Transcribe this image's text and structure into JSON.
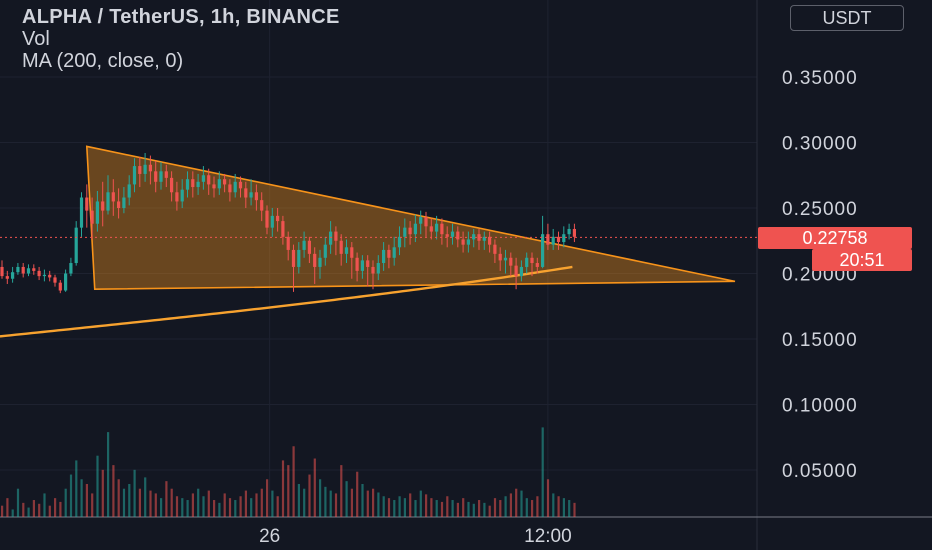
{
  "header": {
    "title": "ALPHA / TetherUS, 1h, BINANCE",
    "vol_label": "Vol",
    "ma_label": "MA (200, close, 0)"
  },
  "currency_button": "USDT",
  "last_price_label": "0.22758",
  "countdown_label": "20:51",
  "colors": {
    "background": "#131722",
    "up": "#26a69a",
    "down": "#ef5350",
    "ma": "#f7a22f",
    "drawing": "#f7931a",
    "text": "#d1d4dc"
  },
  "chart_data": {
    "type": "candlestick",
    "title": "ALPHA / TetherUS, 1h, BINANCE",
    "y_axis": {
      "ticks": [
        "0.35000",
        "0.30000",
        "0.25000",
        "0.20000",
        "0.15000",
        "0.10000",
        "0.05000"
      ],
      "tick_values": [
        0.35,
        0.3,
        0.25,
        0.2,
        0.15,
        0.1,
        0.05
      ],
      "range": [
        0.0,
        0.38
      ]
    },
    "x_axis": {
      "tick_labels": [
        "26",
        "12:00"
      ]
    },
    "last_price": 0.22758,
    "grid": true,
    "drawings": [
      {
        "type": "triangle",
        "name": "symmetrical-triangle",
        "points": [
          [
            0,
            0.297
          ],
          [
            2,
            0.188
          ],
          [
            188,
            0.194
          ]
        ]
      }
    ],
    "ohlc": [
      [
        0.205,
        0.198,
        0.21,
        0.196
      ],
      [
        0.198,
        0.196,
        0.202,
        0.192
      ],
      [
        0.196,
        0.201,
        0.205,
        0.193
      ],
      [
        0.201,
        0.205,
        0.208,
        0.199
      ],
      [
        0.205,
        0.2,
        0.208,
        0.197
      ],
      [
        0.2,
        0.204,
        0.207,
        0.198
      ],
      [
        0.204,
        0.202,
        0.207,
        0.199
      ],
      [
        0.202,
        0.198,
        0.205,
        0.195
      ],
      [
        0.198,
        0.199,
        0.203,
        0.194
      ],
      [
        0.199,
        0.197,
        0.202,
        0.194
      ],
      [
        0.197,
        0.193,
        0.199,
        0.19
      ],
      [
        0.193,
        0.187,
        0.195,
        0.185
      ],
      [
        0.187,
        0.2,
        0.203,
        0.186
      ],
      [
        0.2,
        0.208,
        0.212,
        0.198
      ],
      [
        0.208,
        0.235,
        0.24,
        0.206
      ],
      [
        0.235,
        0.258,
        0.262,
        0.228
      ],
      [
        0.258,
        0.248,
        0.268,
        0.235
      ],
      [
        0.248,
        0.238,
        0.258,
        0.226
      ],
      [
        0.238,
        0.255,
        0.263,
        0.232
      ],
      [
        0.255,
        0.248,
        0.27,
        0.236
      ],
      [
        0.248,
        0.262,
        0.275,
        0.245
      ],
      [
        0.262,
        0.255,
        0.272,
        0.244
      ],
      [
        0.255,
        0.25,
        0.265,
        0.242
      ],
      [
        0.25,
        0.258,
        0.266,
        0.246
      ],
      [
        0.258,
        0.268,
        0.275,
        0.252
      ],
      [
        0.268,
        0.282,
        0.288,
        0.262
      ],
      [
        0.282,
        0.276,
        0.289,
        0.266
      ],
      [
        0.276,
        0.283,
        0.292,
        0.27
      ],
      [
        0.283,
        0.278,
        0.29,
        0.268
      ],
      [
        0.278,
        0.27,
        0.286,
        0.262
      ],
      [
        0.27,
        0.278,
        0.285,
        0.264
      ],
      [
        0.278,
        0.273,
        0.283,
        0.266
      ],
      [
        0.273,
        0.262,
        0.278,
        0.255
      ],
      [
        0.262,
        0.255,
        0.27,
        0.248
      ],
      [
        0.255,
        0.264,
        0.272,
        0.25
      ],
      [
        0.264,
        0.272,
        0.278,
        0.258
      ],
      [
        0.272,
        0.266,
        0.278,
        0.258
      ],
      [
        0.266,
        0.27,
        0.276,
        0.26
      ],
      [
        0.27,
        0.275,
        0.282,
        0.264
      ],
      [
        0.275,
        0.268,
        0.28,
        0.26
      ],
      [
        0.268,
        0.265,
        0.274,
        0.258
      ],
      [
        0.265,
        0.272,
        0.278,
        0.26
      ],
      [
        0.272,
        0.268,
        0.276,
        0.262
      ],
      [
        0.268,
        0.262,
        0.272,
        0.255
      ],
      [
        0.262,
        0.27,
        0.276,
        0.258
      ],
      [
        0.27,
        0.265,
        0.274,
        0.258
      ],
      [
        0.265,
        0.258,
        0.27,
        0.25
      ],
      [
        0.258,
        0.262,
        0.272,
        0.252
      ],
      [
        0.262,
        0.256,
        0.268,
        0.248
      ],
      [
        0.256,
        0.248,
        0.262,
        0.24
      ],
      [
        0.248,
        0.235,
        0.252,
        0.23
      ],
      [
        0.235,
        0.244,
        0.25,
        0.228
      ],
      [
        0.244,
        0.24,
        0.25,
        0.232
      ],
      [
        0.24,
        0.228,
        0.244,
        0.222
      ],
      [
        0.228,
        0.218,
        0.232,
        0.21
      ],
      [
        0.218,
        0.205,
        0.222,
        0.186
      ],
      [
        0.205,
        0.218,
        0.224,
        0.2
      ],
      [
        0.218,
        0.225,
        0.232,
        0.212
      ],
      [
        0.225,
        0.215,
        0.228,
        0.208
      ],
      [
        0.215,
        0.205,
        0.22,
        0.192
      ],
      [
        0.205,
        0.212,
        0.218,
        0.196
      ],
      [
        0.212,
        0.222,
        0.228,
        0.206
      ],
      [
        0.222,
        0.232,
        0.24,
        0.215
      ],
      [
        0.232,
        0.225,
        0.236,
        0.214
      ],
      [
        0.225,
        0.215,
        0.23,
        0.206
      ],
      [
        0.215,
        0.22,
        0.226,
        0.208
      ],
      [
        0.22,
        0.212,
        0.224,
        0.196
      ],
      [
        0.212,
        0.202,
        0.216,
        0.194
      ],
      [
        0.202,
        0.21,
        0.214,
        0.196
      ],
      [
        0.21,
        0.205,
        0.214,
        0.19
      ],
      [
        0.205,
        0.2,
        0.21,
        0.188
      ],
      [
        0.2,
        0.208,
        0.214,
        0.195
      ],
      [
        0.208,
        0.218,
        0.224,
        0.202
      ],
      [
        0.218,
        0.212,
        0.222,
        0.204
      ],
      [
        0.212,
        0.22,
        0.228,
        0.206
      ],
      [
        0.22,
        0.228,
        0.236,
        0.214
      ],
      [
        0.228,
        0.235,
        0.242,
        0.22
      ],
      [
        0.235,
        0.23,
        0.24,
        0.222
      ],
      [
        0.23,
        0.238,
        0.245,
        0.224
      ],
      [
        0.238,
        0.243,
        0.248,
        0.23
      ],
      [
        0.243,
        0.236,
        0.247,
        0.228
      ],
      [
        0.236,
        0.232,
        0.242,
        0.226
      ],
      [
        0.232,
        0.238,
        0.244,
        0.226
      ],
      [
        0.238,
        0.23,
        0.242,
        0.222
      ],
      [
        0.23,
        0.228,
        0.236,
        0.22
      ],
      [
        0.228,
        0.232,
        0.238,
        0.222
      ],
      [
        0.232,
        0.226,
        0.236,
        0.22
      ],
      [
        0.226,
        0.222,
        0.232,
        0.216
      ],
      [
        0.222,
        0.226,
        0.232,
        0.216
      ],
      [
        0.226,
        0.23,
        0.234,
        0.22
      ],
      [
        0.23,
        0.225,
        0.234,
        0.218
      ],
      [
        0.225,
        0.228,
        0.232,
        0.218
      ],
      [
        0.228,
        0.222,
        0.232,
        0.216
      ],
      [
        0.222,
        0.215,
        0.226,
        0.208
      ],
      [
        0.215,
        0.21,
        0.22,
        0.202
      ],
      [
        0.21,
        0.212,
        0.218,
        0.2
      ],
      [
        0.212,
        0.206,
        0.216,
        0.198
      ],
      [
        0.206,
        0.198,
        0.212,
        0.188
      ],
      [
        0.198,
        0.205,
        0.21,
        0.194
      ],
      [
        0.205,
        0.212,
        0.216,
        0.2
      ],
      [
        0.212,
        0.208,
        0.216,
        0.198
      ],
      [
        0.208,
        0.205,
        0.212,
        0.2
      ],
      [
        0.205,
        0.23,
        0.244,
        0.204
      ],
      [
        0.23,
        0.222,
        0.238,
        0.218
      ],
      [
        0.222,
        0.228,
        0.234,
        0.218
      ],
      [
        0.228,
        0.224,
        0.232,
        0.218
      ],
      [
        0.224,
        0.23,
        0.236,
        0.22
      ],
      [
        0.23,
        0.234,
        0.238,
        0.226
      ],
      [
        0.234,
        0.228,
        0.238,
        0.224
      ]
    ],
    "volume": [
      0.012,
      0.02,
      0.008,
      0.03,
      0.015,
      0.01,
      0.018,
      0.014,
      0.025,
      0.012,
      0.02,
      0.016,
      0.03,
      0.045,
      0.06,
      0.04,
      0.035,
      0.025,
      0.065,
      0.05,
      0.09,
      0.055,
      0.04,
      0.03,
      0.035,
      0.05,
      0.03,
      0.042,
      0.028,
      0.025,
      0.02,
      0.038,
      0.03,
      0.022,
      0.02,
      0.018,
      0.025,
      0.03,
      0.022,
      0.028,
      0.018,
      0.015,
      0.025,
      0.02,
      0.018,
      0.022,
      0.028,
      0.02,
      0.025,
      0.03,
      0.04,
      0.028,
      0.022,
      0.06,
      0.055,
      0.075,
      0.035,
      0.03,
      0.045,
      0.062,
      0.04,
      0.032,
      0.028,
      0.025,
      0.055,
      0.038,
      0.03,
      0.048,
      0.035,
      0.028,
      0.03,
      0.026,
      0.022,
      0.02,
      0.018,
      0.022,
      0.02,
      0.025,
      0.018,
      0.028,
      0.024,
      0.02,
      0.018,
      0.016,
      0.022,
      0.018,
      0.015,
      0.02,
      0.016,
      0.014,
      0.018,
      0.015,
      0.012,
      0.02,
      0.018,
      0.022,
      0.025,
      0.03,
      0.028,
      0.02,
      0.018,
      0.022,
      0.095,
      0.04,
      0.025,
      0.022,
      0.02,
      0.018,
      0.015
    ]
  }
}
